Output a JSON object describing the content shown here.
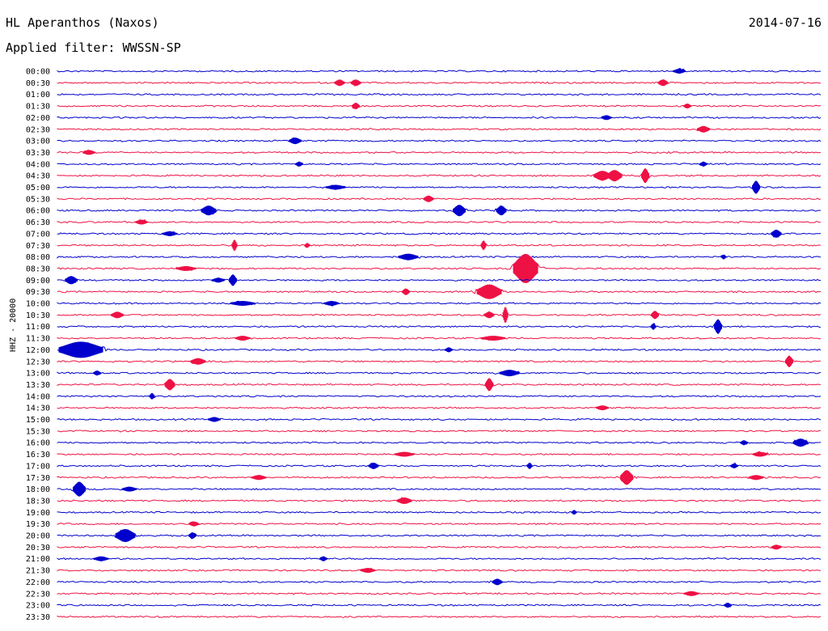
{
  "header": {
    "station": "HL Aperanthos (Naxos)",
    "date": "2014-07-16",
    "filter": "Applied filter: WWSSN-SP"
  },
  "axis": {
    "ylabel": "HHZ - 20000"
  },
  "colors": {
    "trace_a": "#0000cc",
    "trace_b": "#ee1144",
    "background": "#ffffff"
  },
  "chart_data": {
    "type": "line",
    "title": "",
    "xlabel": "",
    "ylabel": "HHZ - 20000",
    "rows": [
      {
        "time": "00:00",
        "color": "blue",
        "events": [
          [
            840,
            3,
            5
          ]
        ]
      },
      {
        "time": "00:30",
        "color": "red",
        "events": [
          [
            420,
            4,
            4
          ],
          [
            440,
            4,
            4
          ],
          [
            820,
            4,
            4
          ]
        ]
      },
      {
        "time": "01:00",
        "color": "blue",
        "events": []
      },
      {
        "time": "01:30",
        "color": "red",
        "events": [
          [
            440,
            4,
            3
          ],
          [
            850,
            3,
            3
          ]
        ]
      },
      {
        "time": "02:00",
        "color": "blue",
        "events": [
          [
            750,
            3,
            4
          ]
        ]
      },
      {
        "time": "02:30",
        "color": "red",
        "events": [
          [
            870,
            4,
            5
          ]
        ]
      },
      {
        "time": "03:00",
        "color": "blue",
        "events": [
          [
            365,
            4,
            5
          ]
        ]
      },
      {
        "time": "03:30",
        "color": "red",
        "events": [
          [
            110,
            3,
            5
          ]
        ]
      },
      {
        "time": "04:00",
        "color": "blue",
        "events": [
          [
            370,
            3,
            3
          ],
          [
            870,
            3,
            3
          ]
        ]
      },
      {
        "time": "04:30",
        "color": "red",
        "events": [
          [
            745,
            6,
            7
          ],
          [
            760,
            7,
            6
          ],
          [
            798,
            9,
            3
          ]
        ]
      },
      {
        "time": "05:00",
        "color": "blue",
        "events": [
          [
            415,
            3,
            8
          ],
          [
            935,
            8,
            3
          ]
        ]
      },
      {
        "time": "05:30",
        "color": "red",
        "events": [
          [
            530,
            4,
            4
          ]
        ]
      },
      {
        "time": "06:00",
        "color": "blue",
        "events": [
          [
            258,
            6,
            6
          ],
          [
            568,
            7,
            5
          ],
          [
            620,
            6,
            4
          ]
        ]
      },
      {
        "time": "06:30",
        "color": "red",
        "events": [
          [
            175,
            3,
            5
          ]
        ]
      },
      {
        "time": "07:00",
        "color": "blue",
        "events": [
          [
            960,
            5,
            4
          ],
          [
            210,
            3,
            6
          ]
        ]
      },
      {
        "time": "07:30",
        "color": "red",
        "events": [
          [
            290,
            7,
            2
          ],
          [
            598,
            6,
            2
          ],
          [
            380,
            3,
            2
          ]
        ]
      },
      {
        "time": "08:00",
        "color": "blue",
        "events": [
          [
            505,
            4,
            8
          ],
          [
            895,
            3,
            2
          ]
        ]
      },
      {
        "time": "08:30",
        "color": "red",
        "events": [
          [
            650,
            18,
            10
          ],
          [
            230,
            3,
            8
          ]
        ]
      },
      {
        "time": "09:00",
        "color": "blue",
        "events": [
          [
            88,
            5,
            5
          ],
          [
            288,
            7,
            3
          ],
          [
            270,
            3,
            5
          ]
        ]
      },
      {
        "time": "09:30",
        "color": "red",
        "events": [
          [
            605,
            9,
            10
          ],
          [
            502,
            4,
            3
          ]
        ]
      },
      {
        "time": "10:00",
        "color": "blue",
        "events": [
          [
            300,
            3,
            10
          ],
          [
            410,
            3,
            6
          ]
        ]
      },
      {
        "time": "10:30",
        "color": "red",
        "events": [
          [
            145,
            4,
            5
          ],
          [
            605,
            4,
            4
          ],
          [
            625,
            10,
            2
          ],
          [
            810,
            5,
            3
          ]
        ]
      },
      {
        "time": "11:00",
        "color": "blue",
        "events": [
          [
            888,
            9,
            3
          ],
          [
            808,
            4,
            2
          ]
        ]
      },
      {
        "time": "11:30",
        "color": "red",
        "events": [
          [
            610,
            3,
            10
          ],
          [
            300,
            3,
            6
          ]
        ]
      },
      {
        "time": "12:00",
        "color": "blue",
        "events": [
          [
            100,
            10,
            18
          ],
          [
            555,
            3,
            3
          ]
        ]
      },
      {
        "time": "12:30",
        "color": "red",
        "events": [
          [
            245,
            4,
            6
          ],
          [
            976,
            7,
            3
          ]
        ]
      },
      {
        "time": "13:00",
        "color": "blue",
        "events": [
          [
            630,
            4,
            8
          ],
          [
            120,
            3,
            3
          ]
        ]
      },
      {
        "time": "13:30",
        "color": "red",
        "events": [
          [
            210,
            7,
            4
          ],
          [
            605,
            8,
            3
          ]
        ]
      },
      {
        "time": "14:00",
        "color": "blue",
        "events": [
          [
            188,
            4,
            2
          ]
        ]
      },
      {
        "time": "14:30",
        "color": "red",
        "events": [
          [
            745,
            3,
            5
          ]
        ]
      },
      {
        "time": "15:00",
        "color": "blue",
        "events": [
          [
            265,
            3,
            5
          ]
        ]
      },
      {
        "time": "15:30",
        "color": "red",
        "events": []
      },
      {
        "time": "16:00",
        "color": "blue",
        "events": [
          [
            990,
            5,
            6
          ],
          [
            920,
            3,
            3
          ]
        ]
      },
      {
        "time": "16:30",
        "color": "red",
        "events": [
          [
            500,
            3,
            8
          ],
          [
            940,
            3,
            6
          ]
        ]
      },
      {
        "time": "17:00",
        "color": "blue",
        "events": [
          [
            462,
            4,
            4
          ],
          [
            655,
            4,
            2
          ],
          [
            908,
            3,
            3
          ]
        ]
      },
      {
        "time": "17:30",
        "color": "red",
        "events": [
          [
            775,
            9,
            5
          ],
          [
            320,
            3,
            6
          ],
          [
            935,
            3,
            6
          ]
        ]
      },
      {
        "time": "18:00",
        "color": "blue",
        "events": [
          [
            98,
            9,
            5
          ],
          [
            160,
            3,
            6
          ]
        ]
      },
      {
        "time": "18:30",
        "color": "red",
        "events": [
          [
            500,
            4,
            6
          ]
        ]
      },
      {
        "time": "19:00",
        "color": "blue",
        "events": [
          [
            710,
            3,
            2
          ]
        ]
      },
      {
        "time": "19:30",
        "color": "red",
        "events": [
          [
            240,
            3,
            4
          ]
        ]
      },
      {
        "time": "20:00",
        "color": "blue",
        "events": [
          [
            155,
            8,
            8
          ],
          [
            238,
            4,
            3
          ]
        ]
      },
      {
        "time": "20:30",
        "color": "red",
        "events": [
          [
            960,
            3,
            4
          ]
        ]
      },
      {
        "time": "21:00",
        "color": "blue",
        "events": [
          [
            125,
            3,
            6
          ],
          [
            400,
            3,
            3
          ]
        ]
      },
      {
        "time": "21:30",
        "color": "red",
        "events": [
          [
            455,
            3,
            6
          ]
        ]
      },
      {
        "time": "22:00",
        "color": "blue",
        "events": [
          [
            615,
            4,
            4
          ]
        ]
      },
      {
        "time": "22:30",
        "color": "red",
        "events": [
          [
            855,
            3,
            6
          ]
        ]
      },
      {
        "time": "23:00",
        "color": "blue",
        "events": [
          [
            900,
            3,
            3
          ]
        ]
      },
      {
        "time": "23:30",
        "color": "red",
        "events": []
      }
    ]
  }
}
